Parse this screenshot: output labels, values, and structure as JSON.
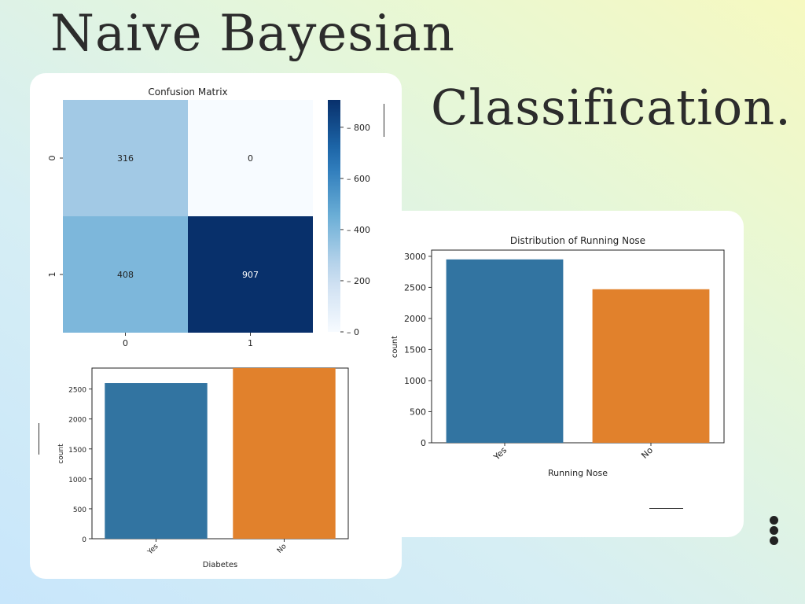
{
  "slide": {
    "title_line1": "Naive Bayesian",
    "title_line2": "Classification."
  },
  "chart_data": [
    {
      "type": "heatmap",
      "title": "Confusion Matrix",
      "x_tick_labels": [
        "0",
        "1"
      ],
      "y_tick_labels": [
        "0",
        "1"
      ],
      "matrix": [
        [
          316,
          0
        ],
        [
          408,
          907
        ]
      ],
      "colorbar": {
        "min": 0,
        "max": 907,
        "ticks": [
          0,
          200,
          400,
          600,
          800
        ]
      },
      "colormap": "Blues"
    },
    {
      "type": "bar",
      "title": "",
      "categories": [
        "Yes",
        "No"
      ],
      "values": [
        2600,
        2850
      ],
      "xlabel": "Diabetes",
      "ylabel": "count",
      "ylim": [
        0,
        2850
      ],
      "yticks": [
        0,
        500,
        1000,
        1500,
        2000,
        2500
      ],
      "colors": [
        "#3274a1",
        "#e1812c"
      ]
    },
    {
      "type": "bar",
      "title": "Distribution of Running Nose",
      "categories": [
        "Yes",
        "No"
      ],
      "values": [
        2950,
        2470
      ],
      "xlabel": "Running Nose",
      "ylabel": "count",
      "ylim": [
        0,
        3100
      ],
      "yticks": [
        0,
        500,
        1000,
        1500,
        2000,
        2500,
        3000
      ],
      "colors": [
        "#3274a1",
        "#e1812c"
      ]
    }
  ]
}
